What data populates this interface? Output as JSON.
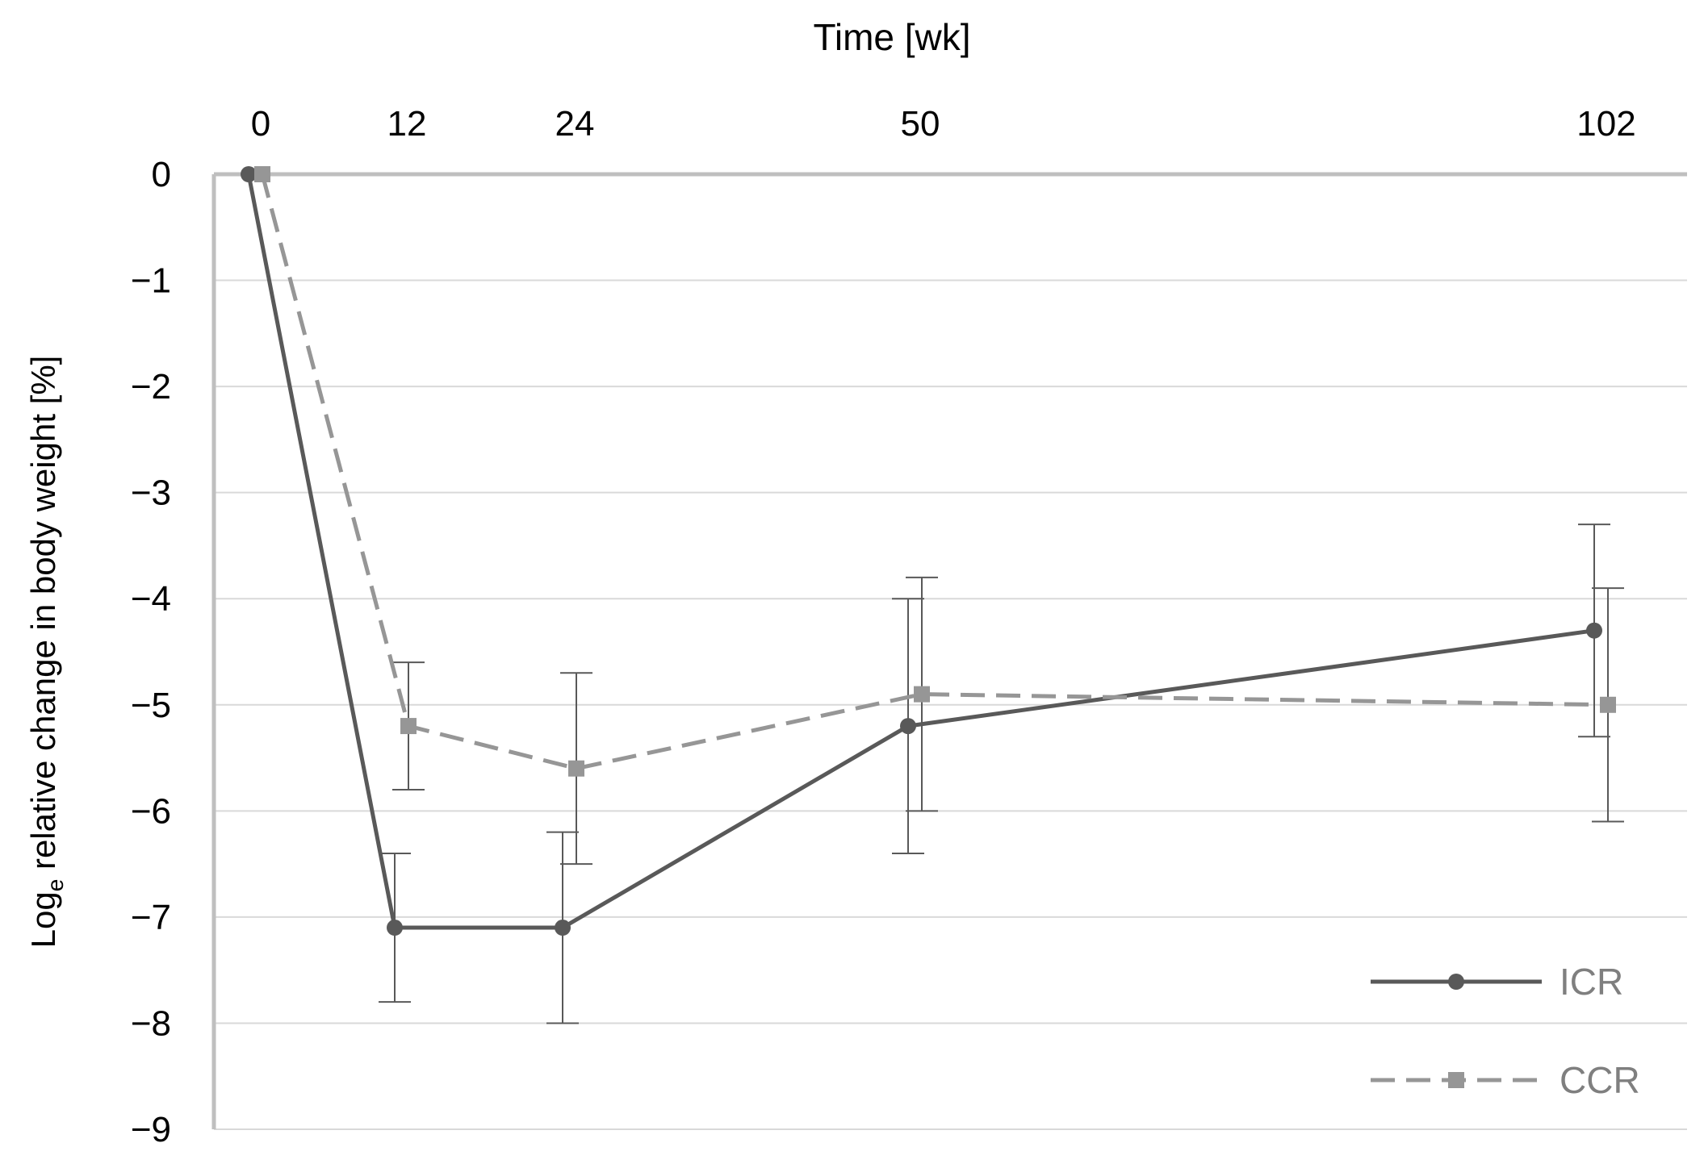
{
  "chart_data": {
    "type": "line",
    "title": "",
    "xlabel": "Time [wk]",
    "ylabel": {
      "prefix": "Log",
      "subscript": "e",
      "suffix": " relative change in body weight [%]"
    },
    "x_ticks": [
      "0",
      "12",
      "24",
      "50",
      "102"
    ],
    "y_ticks": [
      "0",
      "−1",
      "−2",
      "−3",
      "−4",
      "−5",
      "−6",
      "−7",
      "−8",
      "−9"
    ],
    "ylim": [
      -9,
      0
    ],
    "xaxis_position": "top",
    "grid": true,
    "legend_position": "bottom-right",
    "series": [
      {
        "name": "ICR",
        "style": "solid",
        "marker": "circle",
        "color": "#595959",
        "x": [
          0,
          12,
          24,
          50,
          102
        ],
        "values": [
          0,
          -7.1,
          -7.1,
          -5.2,
          -4.3
        ],
        "error_low": [
          0,
          -7.8,
          -8.0,
          -6.4,
          -5.3
        ],
        "error_high": [
          0,
          -6.4,
          -6.2,
          -4.0,
          -3.3
        ]
      },
      {
        "name": "CCR",
        "style": "dashed",
        "marker": "square",
        "color": "#969696",
        "x": [
          0,
          12,
          24,
          50,
          102
        ],
        "values": [
          0,
          -5.2,
          -5.6,
          -4.9,
          -5.0
        ],
        "error_low": [
          0,
          -5.8,
          -6.5,
          -6.0,
          -6.1
        ],
        "error_high": [
          0,
          -4.6,
          -4.7,
          -3.8,
          -3.9
        ]
      }
    ]
  },
  "colors": {
    "grid": "#d9d9d9",
    "axis": "#bfbfbf",
    "text": "#000000",
    "legend_text": "#7f7f7f",
    "errorbar": "#595959"
  }
}
